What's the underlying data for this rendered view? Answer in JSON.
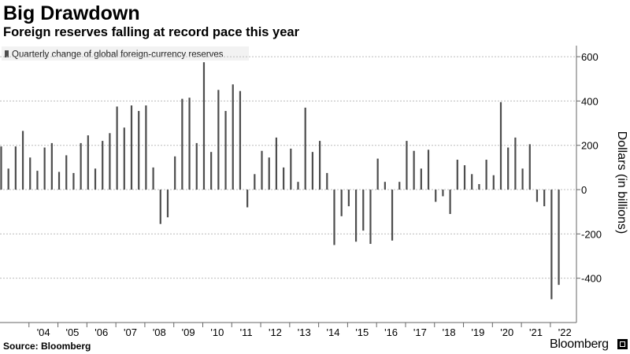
{
  "header": {
    "title": "Big Drawdown",
    "subtitle": "Foreign reserves falling at record pace this year"
  },
  "footer": {
    "source": "Source: Bloomberg",
    "brand": "Bloomberg"
  },
  "colors": {
    "bar": "#4d4d4d",
    "grid": "#bcbcbc",
    "axis": "#666666",
    "legend_bg": "#f2f2f2",
    "text": "#000000"
  },
  "chart_data": {
    "type": "bar",
    "legend": [
      "Quarterly change of global foreign-currency reserves"
    ],
    "ylabel": "Dollars (in billions)",
    "ylim": [
      -600,
      650
    ],
    "yticks": [
      600,
      400,
      200,
      0,
      -200,
      -400
    ],
    "ytick_labels": [
      "600",
      "400",
      "200",
      "0",
      "-200",
      "-400"
    ],
    "y_axis_side": "right",
    "grid": "horizontal dashed",
    "xlim": [
      2003.0,
      2022.9
    ],
    "x_tick_labels": [
      {
        "year": 2004,
        "label": "'04"
      },
      {
        "year": 2005,
        "label": "'05"
      },
      {
        "year": 2006,
        "label": "'06"
      },
      {
        "year": 2007,
        "label": "'07"
      },
      {
        "year": 2008,
        "label": "'08"
      },
      {
        "year": 2009,
        "label": "'09"
      },
      {
        "year": 2010,
        "label": "'10"
      },
      {
        "year": 2011,
        "label": "'11"
      },
      {
        "year": 2012,
        "label": "'12"
      },
      {
        "year": 2013,
        "label": "'13"
      },
      {
        "year": 2014,
        "label": "'14"
      },
      {
        "year": 2015,
        "label": "'15"
      },
      {
        "year": 2016,
        "label": "'16"
      },
      {
        "year": 2017,
        "label": "'17"
      },
      {
        "year": 2018,
        "label": "'18"
      },
      {
        "year": 2019,
        "label": "'19"
      },
      {
        "year": 2020,
        "label": "'20"
      },
      {
        "year": 2021,
        "label": "'21"
      },
      {
        "year": 2022,
        "label": "'22"
      }
    ],
    "series": [
      {
        "name": "Quarterly change of global foreign-currency reserves",
        "points": [
          {
            "year": 2003,
            "q": 1,
            "value": 195
          },
          {
            "year": 2003,
            "q": 2,
            "value": 95
          },
          {
            "year": 2003,
            "q": 3,
            "value": 195
          },
          {
            "year": 2003,
            "q": 4,
            "value": 265
          },
          {
            "year": 2004,
            "q": 1,
            "value": 145
          },
          {
            "year": 2004,
            "q": 2,
            "value": 85
          },
          {
            "year": 2004,
            "q": 3,
            "value": 190
          },
          {
            "year": 2004,
            "q": 4,
            "value": 210
          },
          {
            "year": 2005,
            "q": 1,
            "value": 80
          },
          {
            "year": 2005,
            "q": 2,
            "value": 155
          },
          {
            "year": 2005,
            "q": 3,
            "value": 75
          },
          {
            "year": 2005,
            "q": 4,
            "value": 210
          },
          {
            "year": 2006,
            "q": 1,
            "value": 245
          },
          {
            "year": 2006,
            "q": 2,
            "value": 95
          },
          {
            "year": 2006,
            "q": 3,
            "value": 220
          },
          {
            "year": 2006,
            "q": 4,
            "value": 255
          },
          {
            "year": 2007,
            "q": 1,
            "value": 375
          },
          {
            "year": 2007,
            "q": 2,
            "value": 280
          },
          {
            "year": 2007,
            "q": 3,
            "value": 380
          },
          {
            "year": 2007,
            "q": 4,
            "value": 355
          },
          {
            "year": 2008,
            "q": 1,
            "value": 380
          },
          {
            "year": 2008,
            "q": 2,
            "value": 100
          },
          {
            "year": 2008,
            "q": 3,
            "value": -155
          },
          {
            "year": 2008,
            "q": 4,
            "value": -125
          },
          {
            "year": 2009,
            "q": 1,
            "value": 150
          },
          {
            "year": 2009,
            "q": 2,
            "value": 410
          },
          {
            "year": 2009,
            "q": 3,
            "value": 415
          },
          {
            "year": 2009,
            "q": 4,
            "value": 210
          },
          {
            "year": 2010,
            "q": 1,
            "value": 575
          },
          {
            "year": 2010,
            "q": 2,
            "value": 170
          },
          {
            "year": 2010,
            "q": 3,
            "value": 450
          },
          {
            "year": 2010,
            "q": 4,
            "value": 355
          },
          {
            "year": 2011,
            "q": 1,
            "value": 475
          },
          {
            "year": 2011,
            "q": 2,
            "value": 445
          },
          {
            "year": 2011,
            "q": 3,
            "value": -80
          },
          {
            "year": 2011,
            "q": 4,
            "value": 70
          },
          {
            "year": 2012,
            "q": 1,
            "value": 175
          },
          {
            "year": 2012,
            "q": 2,
            "value": 145
          },
          {
            "year": 2012,
            "q": 3,
            "value": 235
          },
          {
            "year": 2012,
            "q": 4,
            "value": 100
          },
          {
            "year": 2013,
            "q": 1,
            "value": 185
          },
          {
            "year": 2013,
            "q": 2,
            "value": 35
          },
          {
            "year": 2013,
            "q": 3,
            "value": 370
          },
          {
            "year": 2013,
            "q": 4,
            "value": 170
          },
          {
            "year": 2014,
            "q": 1,
            "value": 220
          },
          {
            "year": 2014,
            "q": 2,
            "value": 75
          },
          {
            "year": 2014,
            "q": 3,
            "value": -250
          },
          {
            "year": 2014,
            "q": 4,
            "value": -120
          },
          {
            "year": 2015,
            "q": 1,
            "value": -75
          },
          {
            "year": 2015,
            "q": 2,
            "value": -235
          },
          {
            "year": 2015,
            "q": 3,
            "value": -185
          },
          {
            "year": 2015,
            "q": 4,
            "value": -245
          },
          {
            "year": 2016,
            "q": 1,
            "value": 140
          },
          {
            "year": 2016,
            "q": 2,
            "value": 35
          },
          {
            "year": 2016,
            "q": 3,
            "value": -230
          },
          {
            "year": 2016,
            "q": 4,
            "value": 35
          },
          {
            "year": 2017,
            "q": 1,
            "value": 220
          },
          {
            "year": 2017,
            "q": 2,
            "value": 175
          },
          {
            "year": 2017,
            "q": 3,
            "value": 95
          },
          {
            "year": 2017,
            "q": 4,
            "value": 180
          },
          {
            "year": 2018,
            "q": 1,
            "value": -55
          },
          {
            "year": 2018,
            "q": 2,
            "value": -30
          },
          {
            "year": 2018,
            "q": 3,
            "value": -110
          },
          {
            "year": 2018,
            "q": 4,
            "value": 135
          },
          {
            "year": 2019,
            "q": 1,
            "value": 110
          },
          {
            "year": 2019,
            "q": 2,
            "value": 70
          },
          {
            "year": 2019,
            "q": 3,
            "value": 25
          },
          {
            "year": 2019,
            "q": 4,
            "value": 135
          },
          {
            "year": 2020,
            "q": 1,
            "value": 65
          },
          {
            "year": 2020,
            "q": 2,
            "value": 395
          },
          {
            "year": 2020,
            "q": 3,
            "value": 190
          },
          {
            "year": 2020,
            "q": 4,
            "value": 235
          },
          {
            "year": 2021,
            "q": 1,
            "value": 95
          },
          {
            "year": 2021,
            "q": 2,
            "value": 205
          },
          {
            "year": 2021,
            "q": 3,
            "value": -55
          },
          {
            "year": 2021,
            "q": 4,
            "value": -75
          },
          {
            "year": 2022,
            "q": 1,
            "value": -495
          },
          {
            "year": 2022,
            "q": 2,
            "value": -430
          }
        ]
      }
    ]
  }
}
